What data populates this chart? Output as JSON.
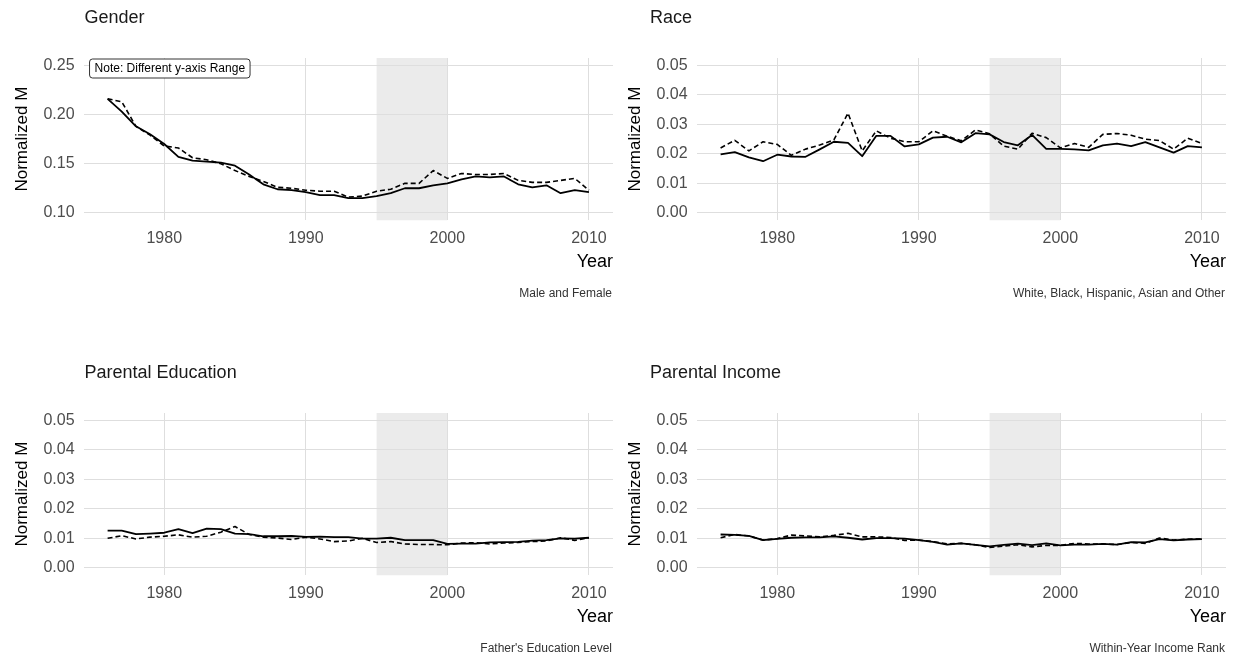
{
  "chart_data": [
    {
      "type": "line",
      "title": "Gender",
      "xlabel": "Year",
      "ylabel": "Normalized M",
      "x": [
        1976,
        1977,
        1978,
        1979,
        1980,
        1981,
        1982,
        1983,
        1984,
        1985,
        1986,
        1987,
        1988,
        1989,
        1990,
        1991,
        1992,
        1993,
        1994,
        1995,
        1996,
        1997,
        1998,
        1999,
        2000,
        2001,
        2002,
        2003,
        2004,
        2005,
        2006,
        2007,
        2008,
        2009,
        2010
      ],
      "series": [
        {
          "color": "#000000",
          "values": [
            0.216,
            0.203,
            0.188,
            0.18,
            0.17,
            0.157,
            0.153,
            0.152,
            0.151,
            0.148,
            0.139,
            0.129,
            0.124,
            0.123,
            0.121,
            0.118,
            0.118,
            0.115,
            0.115,
            0.117,
            0.12,
            0.125,
            0.125,
            0.128,
            0.13,
            0.134,
            0.137,
            0.136,
            0.137,
            0.129,
            0.126,
            0.128,
            0.12,
            0.123,
            0.121
          ]
        },
        {
          "color": "#000000",
          "line_style": "dashed",
          "values": [
            0.216,
            0.213,
            0.188,
            0.179,
            0.168,
            0.166,
            0.156,
            0.154,
            0.15,
            0.143,
            0.137,
            0.132,
            0.126,
            0.125,
            0.123,
            0.122,
            0.122,
            0.116,
            0.117,
            0.122,
            0.124,
            0.13,
            0.13,
            0.143,
            0.135,
            0.14,
            0.139,
            0.139,
            0.14,
            0.133,
            0.131,
            0.131,
            0.133,
            0.135,
            0.123
          ]
        }
      ],
      "xlim": [
        1974.3,
        2011.7
      ],
      "xticks": [
        1980,
        1990,
        2000,
        2010
      ],
      "ylim": [
        0.0925,
        0.2575
      ],
      "yticks": [
        {
          "value": 0.1,
          "label": "0.10"
        },
        {
          "value": 0.15,
          "label": "0.15"
        },
        {
          "value": 0.2,
          "label": "0.20"
        },
        {
          "value": 0.25,
          "label": "0.25"
        }
      ],
      "grid": true,
      "bands": [
        {
          "axis": "x",
          "from": 1995,
          "to": 2000,
          "color": "#ebebeb"
        }
      ],
      "annotations": [
        "Note: Different y-axis Range",
        "Male and Female"
      ]
    },
    {
      "type": "line",
      "title": "Race",
      "xlabel": "Year",
      "ylabel": "Normalized M",
      "x": [
        1976,
        1977,
        1978,
        1979,
        1980,
        1981,
        1982,
        1983,
        1984,
        1985,
        1986,
        1987,
        1988,
        1989,
        1990,
        1991,
        1992,
        1993,
        1994,
        1995,
        1996,
        1997,
        1998,
        1999,
        2000,
        2001,
        2002,
        2003,
        2004,
        2005,
        2006,
        2007,
        2008,
        2009,
        2010
      ],
      "series": [
        {
          "color": "#000000",
          "values": [
            0.0198,
            0.0206,
            0.0188,
            0.0175,
            0.0197,
            0.0191,
            0.019,
            0.0215,
            0.0241,
            0.0237,
            0.0192,
            0.0261,
            0.0261,
            0.0225,
            0.0232,
            0.0255,
            0.0258,
            0.0239,
            0.027,
            0.0266,
            0.024,
            0.0229,
            0.0264,
            0.0217,
            0.0217,
            0.0215,
            0.0212,
            0.0229,
            0.0235,
            0.0226,
            0.024,
            0.0222,
            0.0204,
            0.0226,
            0.0222
          ]
        },
        {
          "color": "#000000",
          "line_style": "dashed",
          "values": [
            0.022,
            0.0246,
            0.021,
            0.0241,
            0.0232,
            0.0195,
            0.0216,
            0.023,
            0.0247,
            0.0338,
            0.021,
            0.0278,
            0.0253,
            0.0241,
            0.0241,
            0.0278,
            0.026,
            0.0244,
            0.0281,
            0.0268,
            0.0226,
            0.0216,
            0.027,
            0.0255,
            0.022,
            0.0235,
            0.0222,
            0.0266,
            0.0269,
            0.0263,
            0.025,
            0.0245,
            0.0216,
            0.0253,
            0.0235
          ]
        }
      ],
      "xlim": [
        1974.3,
        2011.7
      ],
      "xticks": [
        1980,
        1990,
        2000,
        2010
      ],
      "ylim": [
        -0.0025,
        0.0525
      ],
      "yticks": [
        {
          "value": 0,
          "label": "0.00"
        },
        {
          "value": 0.01,
          "label": "0.01"
        },
        {
          "value": 0.02,
          "label": "0.02"
        },
        {
          "value": 0.03,
          "label": "0.03"
        },
        {
          "value": 0.04,
          "label": "0.04"
        },
        {
          "value": 0.05,
          "label": "0.05"
        }
      ],
      "grid": true,
      "bands": [
        {
          "axis": "x",
          "from": 1995,
          "to": 2000,
          "color": "#ebebeb"
        }
      ],
      "annotations": [
        "White, Black, Hispanic, Asian and Other"
      ]
    },
    {
      "type": "line",
      "title": "Parental Education",
      "xlabel": "Year",
      "ylabel": "Normalized M",
      "x": [
        1976,
        1977,
        1978,
        1979,
        1980,
        1981,
        1982,
        1983,
        1984,
        1985,
        1986,
        1987,
        1988,
        1989,
        1990,
        1991,
        1992,
        1993,
        1994,
        1995,
        1996,
        1997,
        1998,
        1999,
        2000,
        2001,
        2002,
        2003,
        2004,
        2005,
        2006,
        2007,
        2008,
        2009,
        2010
      ],
      "series": [
        {
          "color": "#000000",
          "values": [
            0.0126,
            0.0126,
            0.0114,
            0.0116,
            0.0119,
            0.0131,
            0.0118,
            0.0133,
            0.0131,
            0.0116,
            0.0114,
            0.0107,
            0.0107,
            0.0108,
            0.0105,
            0.0106,
            0.0104,
            0.0104,
            0.0099,
            0.0099,
            0.0102,
            0.0094,
            0.0094,
            0.0094,
            0.0081,
            0.0082,
            0.0082,
            0.0086,
            0.0087,
            0.0088,
            0.0092,
            0.0094,
            0.01,
            0.0099,
            0.0102
          ]
        },
        {
          "color": "#000000",
          "line_style": "dashed",
          "values": [
            0.01,
            0.0109,
            0.0098,
            0.0104,
            0.0107,
            0.0112,
            0.0104,
            0.0107,
            0.0121,
            0.014,
            0.0113,
            0.0104,
            0.0101,
            0.0096,
            0.0104,
            0.0098,
            0.0089,
            0.0091,
            0.01,
            0.0086,
            0.0089,
            0.0081,
            0.0079,
            0.0079,
            0.0078,
            0.0084,
            0.0085,
            0.0081,
            0.0084,
            0.0086,
            0.0089,
            0.0091,
            0.0102,
            0.0093,
            0.0102
          ]
        }
      ],
      "xlim": [
        1974.3,
        2011.7
      ],
      "xticks": [
        1980,
        1990,
        2000,
        2010
      ],
      "ylim": [
        -0.0025,
        0.0525
      ],
      "yticks": [
        {
          "value": 0,
          "label": "0.00"
        },
        {
          "value": 0.01,
          "label": "0.01"
        },
        {
          "value": 0.02,
          "label": "0.02"
        },
        {
          "value": 0.03,
          "label": "0.03"
        },
        {
          "value": 0.04,
          "label": "0.04"
        },
        {
          "value": 0.05,
          "label": "0.05"
        }
      ],
      "grid": true,
      "bands": [
        {
          "axis": "x",
          "from": 1995,
          "to": 2000,
          "color": "#ebebeb"
        }
      ],
      "annotations": [
        "Father's Education Level"
      ]
    },
    {
      "type": "line",
      "title": "Parental Income",
      "xlabel": "Year",
      "ylabel": "Normalized M",
      "x": [
        1976,
        1977,
        1978,
        1979,
        1980,
        1981,
        1982,
        1983,
        1984,
        1985,
        1986,
        1987,
        1988,
        1989,
        1990,
        1991,
        1992,
        1993,
        1994,
        1995,
        1996,
        1997,
        1998,
        1999,
        2000,
        2001,
        2002,
        2003,
        2004,
        2005,
        2006,
        2007,
        2008,
        2009,
        2010
      ],
      "series": [
        {
          "color": "#000000",
          "values": [
            0.0113,
            0.0112,
            0.0108,
            0.0094,
            0.0098,
            0.0102,
            0.0103,
            0.0103,
            0.0107,
            0.0102,
            0.0096,
            0.0101,
            0.0101,
            0.0099,
            0.0094,
            0.0088,
            0.0079,
            0.0083,
            0.0078,
            0.0073,
            0.0078,
            0.0082,
            0.0077,
            0.0083,
            0.0076,
            0.0079,
            0.0079,
            0.0081,
            0.0079,
            0.0087,
            0.0086,
            0.0097,
            0.0093,
            0.0096,
            0.0097
          ]
        },
        {
          "color": "#000000",
          "line_style": "dashed",
          "values": [
            0.0102,
            0.0113,
            0.0108,
            0.0094,
            0.0099,
            0.0111,
            0.0108,
            0.0105,
            0.011,
            0.0117,
            0.0105,
            0.0105,
            0.0103,
            0.0093,
            0.0094,
            0.0089,
            0.0081,
            0.0083,
            0.0078,
            0.0069,
            0.0074,
            0.0078,
            0.0071,
            0.0076,
            0.0076,
            0.0083,
            0.0081,
            0.0081,
            0.0079,
            0.0086,
            0.0083,
            0.0101,
            0.0094,
            0.0097,
            0.0098
          ]
        }
      ],
      "xlim": [
        1974.3,
        2011.7
      ],
      "xticks": [
        1980,
        1990,
        2000,
        2010
      ],
      "ylim": [
        -0.0025,
        0.0525
      ],
      "yticks": [
        {
          "value": 0,
          "label": "0.00"
        },
        {
          "value": 0.01,
          "label": "0.01"
        },
        {
          "value": 0.02,
          "label": "0.02"
        },
        {
          "value": 0.03,
          "label": "0.03"
        },
        {
          "value": 0.04,
          "label": "0.04"
        },
        {
          "value": 0.05,
          "label": "0.05"
        }
      ],
      "grid": true,
      "bands": [
        {
          "axis": "x",
          "from": 1995,
          "to": 2000,
          "color": "#ebebeb"
        }
      ],
      "annotations": [
        "Within-Year Income Rank"
      ]
    }
  ]
}
